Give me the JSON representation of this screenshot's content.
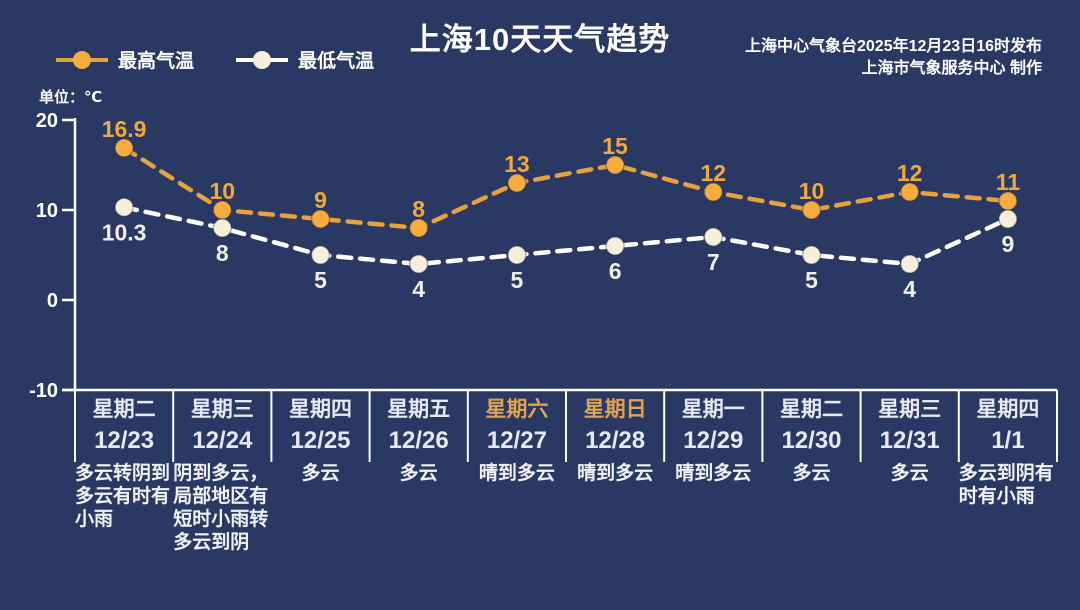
{
  "header": {
    "title": "上海10天天气趋势",
    "issued_line": "上海中心气象台2025年12月23日16时发布",
    "producer_line": "上海市气象服务中心  制作",
    "unit_label": "单位：℃"
  },
  "legend": {
    "max_label": "最高气温",
    "min_label": "最低气温"
  },
  "colors": {
    "background": "#2A3864",
    "max_line": "#E7A23E",
    "max_marker": "#F6AC3E",
    "max_value_label": "#F2A83C",
    "min_line": "#FFFFFF",
    "min_marker": "#F6EFDC",
    "min_value_label": "#F1EFE8",
    "axis": "#FFFFFF",
    "weekday_text": "#E6E9F5",
    "weekend_text": "#DFA355"
  },
  "chart_data": {
    "type": "line",
    "title": "上海10天天气趋势",
    "unit": "℃",
    "ylim": [
      -10,
      20
    ],
    "yticks": [
      20,
      10,
      0,
      -10
    ],
    "grid": false,
    "legend_position": "top-left",
    "line_style": "dashed",
    "series": [
      {
        "name": "最高气温",
        "color": "#F6AC3E",
        "values": [
          16.9,
          10,
          9,
          8,
          13,
          15,
          12,
          10,
          12,
          11
        ]
      },
      {
        "name": "最低气温",
        "color": "#FFFFFF",
        "values": [
          10.3,
          8,
          5,
          4,
          5,
          6,
          7,
          5,
          4,
          9
        ]
      }
    ],
    "days": [
      {
        "weekday": "星期二",
        "date": "12/23",
        "desc": "多云转阴到多云有时有小雨",
        "weekend": false
      },
      {
        "weekday": "星期三",
        "date": "12/24",
        "desc": "阴到多云，局部地区有短时小雨转多云到阴",
        "weekend": false
      },
      {
        "weekday": "星期四",
        "date": "12/25",
        "desc": "多云",
        "weekend": false
      },
      {
        "weekday": "星期五",
        "date": "12/26",
        "desc": "多云",
        "weekend": false
      },
      {
        "weekday": "星期六",
        "date": "12/27",
        "desc": "晴到多云",
        "weekend": true
      },
      {
        "weekday": "星期日",
        "date": "12/28",
        "desc": "晴到多云",
        "weekend": true
      },
      {
        "weekday": "星期一",
        "date": "12/29",
        "desc": "晴到多云",
        "weekend": false
      },
      {
        "weekday": "星期二",
        "date": "12/30",
        "desc": "多云",
        "weekend": false
      },
      {
        "weekday": "星期三",
        "date": "12/31",
        "desc": "多云",
        "weekend": false
      },
      {
        "weekday": "星期四",
        "date": "1/1",
        "desc": "多云到阴有时有小雨",
        "weekend": false
      }
    ]
  }
}
